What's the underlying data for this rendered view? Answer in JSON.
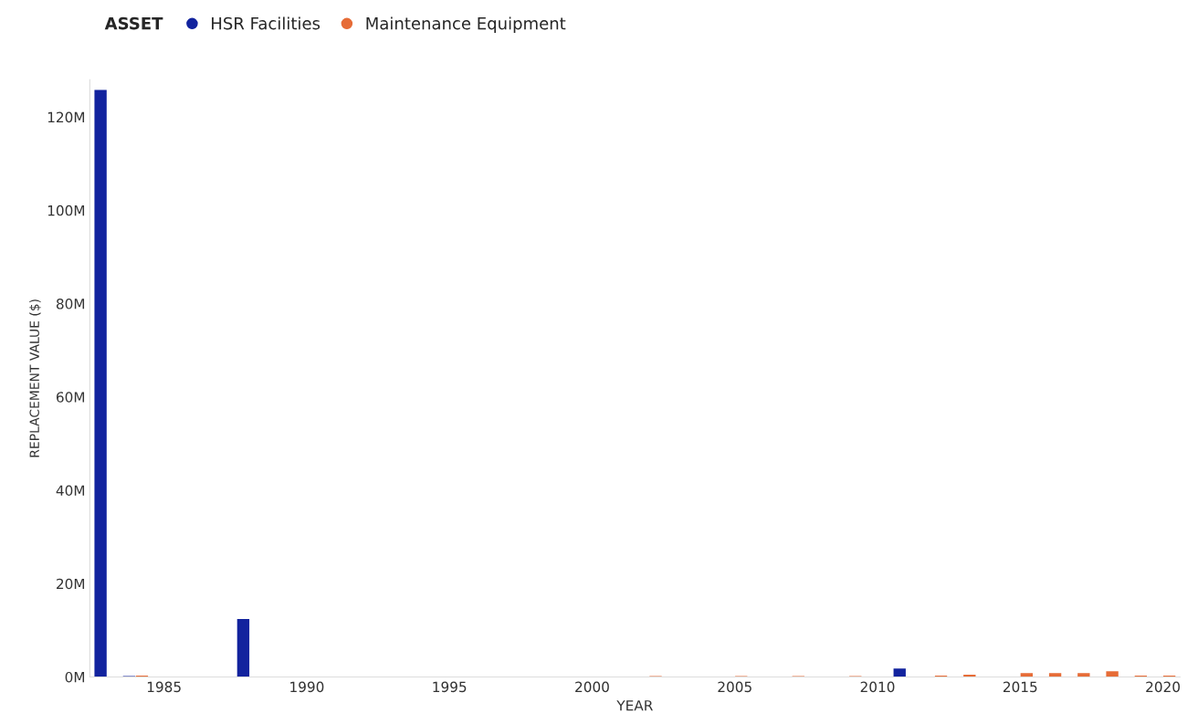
{
  "chart_data": {
    "type": "bar",
    "xlabel": "YEAR",
    "ylabel": "REPLACEMENT VALUE ($)",
    "legend_title": "ASSET",
    "x": [
      1983,
      1984,
      1988,
      2002,
      2005,
      2007,
      2009,
      2011,
      2012,
      2013,
      2015,
      2016,
      2017,
      2018,
      2019,
      2020
    ],
    "series": [
      {
        "name": "HSR Facilities",
        "color": "#12239e",
        "values": [
          125.8,
          0.2,
          12.4,
          null,
          null,
          null,
          null,
          1.8,
          null,
          null,
          null,
          null,
          null,
          null,
          null,
          null
        ]
      },
      {
        "name": "Maintenance Equipment",
        "color": "#e66c37",
        "values": [
          null,
          0.3,
          null,
          0.2,
          0.2,
          0.2,
          0.2,
          null,
          0.3,
          0.5,
          0.8,
          0.8,
          0.8,
          1.2,
          0.3,
          0.3
        ]
      }
    ],
    "xlim": [
      1982.4,
      2020.6
    ],
    "xticks": [
      1985,
      1990,
      1995,
      2000,
      2005,
      2010,
      2015,
      2020
    ],
    "ylim": [
      0,
      128
    ],
    "yticks": [
      {
        "value": 0,
        "label": "0M"
      },
      {
        "value": 20,
        "label": "20M"
      },
      {
        "value": 40,
        "label": "40M"
      },
      {
        "value": 60,
        "label": "60M"
      },
      {
        "value": 80,
        "label": "80M"
      },
      {
        "value": 100,
        "label": "100M"
      },
      {
        "value": 120,
        "label": "120M"
      }
    ],
    "grid": false,
    "legend": "top left"
  }
}
